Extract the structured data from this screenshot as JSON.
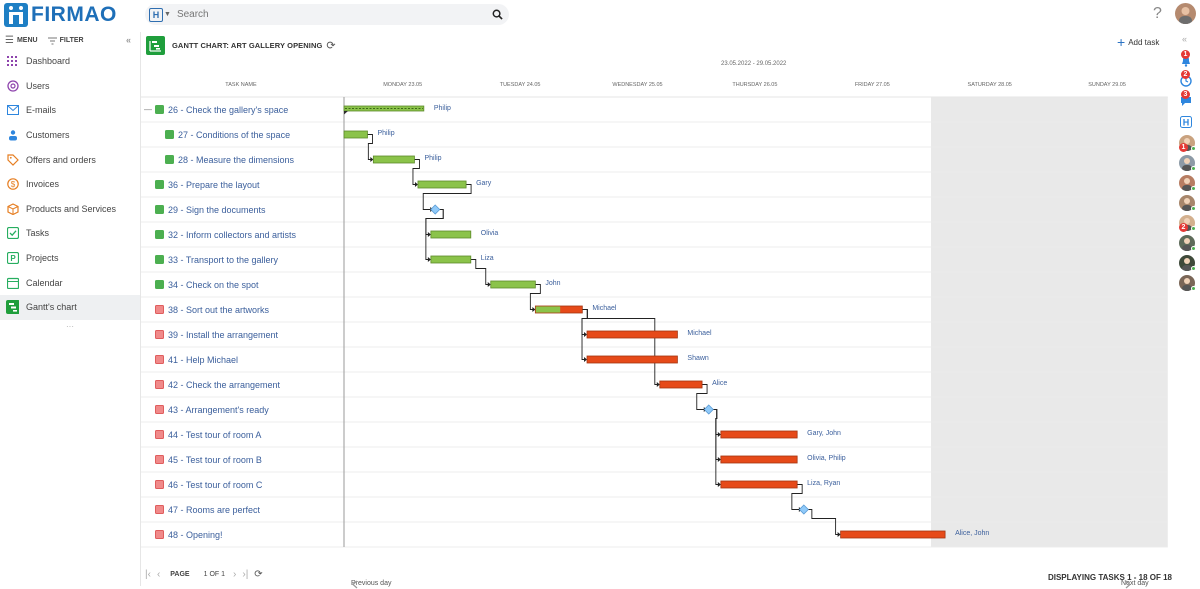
{
  "app": {
    "logo_text": "FIRMAO",
    "search_placeholder": "Search",
    "help_label": "?"
  },
  "sidebar": {
    "menu_label": "MENU",
    "filter_label": "FILTER",
    "items": [
      {
        "label": "Dashboard",
        "icon": "grid-icon",
        "color": "#8e44ad"
      },
      {
        "label": "Users",
        "icon": "at-icon",
        "color": "#8e44ad"
      },
      {
        "label": "E-mails",
        "icon": "envelope-icon",
        "color": "#2e86de"
      },
      {
        "label": "Customers",
        "icon": "people-icon",
        "color": "#2e86de"
      },
      {
        "label": "Offers and orders",
        "icon": "tag-icon",
        "color": "#e67e22"
      },
      {
        "label": "Invoices",
        "icon": "dollar-icon",
        "color": "#e67e22"
      },
      {
        "label": "Products and Services",
        "icon": "box-icon",
        "color": "#e67e22"
      },
      {
        "label": "Tasks",
        "icon": "check-icon",
        "color": "#27ae60"
      },
      {
        "label": "Projects",
        "icon": "project-icon",
        "color": "#27ae60"
      },
      {
        "label": "Calendar",
        "icon": "calendar-icon",
        "color": "#27ae60"
      },
      {
        "label": "Gantt's chart",
        "icon": "gantt-icon",
        "color": "#1f9e3c"
      }
    ]
  },
  "gantt": {
    "title": "GANTT CHART: ART GALLERY OPENING",
    "add_task_label": "Add task",
    "date_range": "23.05.2022 - 29.05.2022",
    "task_col_header": "TASK NAME",
    "days": [
      "MONDAY 23.05",
      "TUESDAY 24.05",
      "WEDNESDAY 25.05",
      "THURSDAY 26.05",
      "FRIDAY 27.05",
      "SATURDAY 28.05",
      "SUNDAY 29.05"
    ],
    "prev_day_label": "Previous day",
    "next_day_label": "Next day",
    "colors": {
      "done": "#8bc34a",
      "todo": "#e64a19",
      "milestone": "#90caf9"
    },
    "tasks": [
      {
        "name": "26 - Check the gallery's space",
        "status": "done",
        "group": true,
        "assignee": "Philip",
        "type": "summary",
        "start": 0.0,
        "end": 0.68
      },
      {
        "name": "27 - Conditions of the space",
        "status": "done",
        "indent": true,
        "assignee": "Philip",
        "type": "bar",
        "start": 0.0,
        "end": 0.2,
        "progress": 1
      },
      {
        "name": "28 - Measure the dimensions",
        "status": "done",
        "indent": true,
        "assignee": "Philip",
        "type": "bar",
        "start": 0.25,
        "end": 0.6,
        "progress": 1
      },
      {
        "name": "36 - Prepare the layout",
        "status": "done",
        "assignee": "Gary",
        "type": "bar",
        "start": 0.63,
        "end": 1.04,
        "progress": 1
      },
      {
        "name": "29 - Sign the documents",
        "status": "done",
        "assignee": "",
        "type": "milestone",
        "start": 0.76
      },
      {
        "name": "32 - Inform collectors and artists",
        "status": "done",
        "assignee": "Olivia",
        "type": "bar",
        "start": 0.74,
        "end": 1.08,
        "progress": 1
      },
      {
        "name": "33 - Transport to the gallery",
        "status": "done",
        "assignee": "Liza",
        "type": "bar",
        "start": 0.74,
        "end": 1.08,
        "progress": 1
      },
      {
        "name": "34 - Check on the spot",
        "status": "done",
        "assignee": "John",
        "type": "bar",
        "start": 1.25,
        "end": 1.63,
        "progress": 1
      },
      {
        "name": "38 - Sort out the artworks",
        "status": "todo",
        "assignee": "Michael",
        "type": "bar",
        "start": 1.63,
        "end": 2.03,
        "progress": 0.52
      },
      {
        "name": "39 - Install the arrangement",
        "status": "todo",
        "assignee": "Michael",
        "type": "bar",
        "start": 2.07,
        "end": 2.84,
        "progress": 0
      },
      {
        "name": "41 - Help Michael",
        "status": "todo",
        "assignee": "Shawn",
        "type": "bar",
        "start": 2.07,
        "end": 2.84,
        "progress": 0
      },
      {
        "name": "42 - Check the arrangement",
        "status": "todo",
        "assignee": "Alice",
        "type": "bar",
        "start": 2.69,
        "end": 3.05,
        "progress": 0
      },
      {
        "name": "43 - Arrangement's ready",
        "status": "todo",
        "assignee": "",
        "type": "milestone",
        "start": 3.09
      },
      {
        "name": "44 - Test tour of room A",
        "status": "todo",
        "assignee": "Gary, John",
        "type": "bar",
        "start": 3.21,
        "end": 3.86,
        "progress": 0
      },
      {
        "name": "45 - Test tour of room B",
        "status": "todo",
        "assignee": "Olivia, Philip",
        "type": "bar",
        "start": 3.21,
        "end": 3.86,
        "progress": 0
      },
      {
        "name": "46 - Test tour of room C",
        "status": "todo",
        "assignee": "Liza, Ryan",
        "type": "bar",
        "start": 3.21,
        "end": 3.86,
        "progress": 0
      },
      {
        "name": "47 - Rooms are perfect",
        "status": "todo",
        "assignee": "",
        "type": "milestone",
        "start": 3.9
      },
      {
        "name": "48 - Opening!",
        "status": "todo",
        "assignee": "Alice, John",
        "type": "bar",
        "start": 4.23,
        "end": 5.12,
        "progress": 0
      }
    ],
    "links": [
      [
        1,
        2
      ],
      [
        2,
        3
      ],
      [
        3,
        4
      ],
      [
        4,
        5
      ],
      [
        4,
        6
      ],
      [
        6,
        7
      ],
      [
        7,
        8
      ],
      [
        8,
        9
      ],
      [
        8,
        10
      ],
      [
        8,
        11
      ],
      [
        11,
        12
      ],
      [
        12,
        13
      ],
      [
        12,
        14
      ],
      [
        12,
        15
      ],
      [
        15,
        16
      ],
      [
        16,
        17
      ]
    ]
  },
  "footer": {
    "page_label": "PAGE",
    "page_num": "1 OF 1",
    "displaying": "DISPLAYING TASKS 1 - 18 OF 18"
  },
  "rail": {
    "badges": [
      "1",
      "2",
      "3"
    ],
    "avatar_badges": [
      "1",
      "2"
    ]
  }
}
